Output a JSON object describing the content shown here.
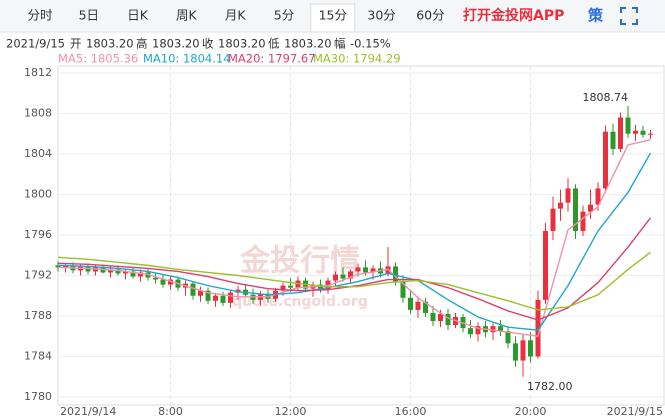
{
  "header": {
    "tabs": [
      {
        "label": "分时",
        "active": false
      },
      {
        "label": "5日",
        "active": false
      },
      {
        "label": "日K",
        "active": false
      },
      {
        "label": "周K",
        "active": false
      },
      {
        "label": "月K",
        "active": false
      },
      {
        "label": "5分",
        "active": false
      },
      {
        "label": "15分",
        "active": true
      },
      {
        "label": "30分",
        "active": false
      },
      {
        "label": "60分",
        "active": false
      }
    ],
    "app_link": "打开金投网APP",
    "strategy": "策"
  },
  "info": {
    "date": "2021/9/15",
    "items": [
      {
        "label": "开",
        "value": "1803.20"
      },
      {
        "label": "高",
        "value": "1803.20"
      },
      {
        "label": "收",
        "value": "1803.20"
      },
      {
        "label": "低",
        "value": "1803.20"
      },
      {
        "label": "幅",
        "value": "-0.15%"
      }
    ]
  },
  "chart_data": {
    "type": "candlestick",
    "up_color": "#e8313f",
    "down_color": "#2a9a2a",
    "ylim": [
      1780,
      1812
    ],
    "yticks": [
      1780,
      1784,
      1788,
      1792,
      1796,
      1800,
      1804,
      1808,
      1812
    ],
    "grid": true,
    "watermark": [
      "金投行情",
      "quote.cngold.org"
    ],
    "high_label": {
      "value": 1808.74,
      "label": "1808.74"
    },
    "low_label": {
      "value": 1782,
      "label": "1782.00"
    },
    "categories": [
      "2021/9/14",
      null,
      null,
      null,
      null,
      null,
      null,
      null,
      null,
      null,
      null,
      null,
      null,
      null,
      null,
      "8:00",
      null,
      null,
      null,
      null,
      null,
      null,
      null,
      null,
      null,
      null,
      null,
      null,
      null,
      null,
      null,
      "12:00",
      null,
      null,
      null,
      null,
      null,
      null,
      null,
      null,
      null,
      null,
      null,
      null,
      null,
      null,
      null,
      "16:00",
      null,
      null,
      null,
      null,
      null,
      null,
      null,
      null,
      null,
      null,
      null,
      null,
      null,
      null,
      null,
      "20:00",
      null,
      null,
      null,
      null,
      null,
      null,
      null,
      null,
      null,
      null,
      null,
      null,
      null,
      null,
      null,
      "2021/9/15"
    ],
    "candles": [
      [
        1793.0,
        1793.4,
        1792.4,
        1792.8
      ],
      [
        1792.8,
        1793.2,
        1792.3,
        1793.0
      ],
      [
        1793.0,
        1793.3,
        1792.2,
        1792.5
      ],
      [
        1792.5,
        1793.1,
        1792.0,
        1792.9
      ],
      [
        1792.9,
        1793.2,
        1792.1,
        1792.4
      ],
      [
        1792.4,
        1793.0,
        1792.0,
        1792.8
      ],
      [
        1792.8,
        1793.1,
        1792.2,
        1792.3
      ],
      [
        1792.3,
        1792.9,
        1791.8,
        1792.6
      ],
      [
        1792.6,
        1793.0,
        1792.0,
        1792.2
      ],
      [
        1792.2,
        1792.7,
        1791.6,
        1792.4
      ],
      [
        1792.4,
        1792.8,
        1791.7,
        1791.9
      ],
      [
        1791.9,
        1792.6,
        1791.4,
        1792.3
      ],
      [
        1792.3,
        1792.6,
        1791.5,
        1791.8
      ],
      [
        1791.8,
        1792.2,
        1791.2,
        1791.6
      ],
      [
        1791.6,
        1792.1,
        1790.8,
        1791.1
      ],
      [
        1791.1,
        1791.9,
        1790.6,
        1791.6
      ],
      [
        1791.6,
        1791.9,
        1790.5,
        1790.8
      ],
      [
        1790.8,
        1791.5,
        1790.0,
        1791.2
      ],
      [
        1791.2,
        1791.4,
        1789.6,
        1790.0
      ],
      [
        1790.0,
        1790.9,
        1789.4,
        1790.5
      ],
      [
        1790.5,
        1790.8,
        1789.2,
        1789.5
      ],
      [
        1789.5,
        1790.3,
        1788.9,
        1790.0
      ],
      [
        1790.0,
        1790.4,
        1789.0,
        1789.3
      ],
      [
        1789.3,
        1790.6,
        1788.8,
        1790.3
      ],
      [
        1790.3,
        1791.0,
        1789.6,
        1790.6
      ],
      [
        1790.6,
        1791.2,
        1789.8,
        1790.1
      ],
      [
        1790.1,
        1790.7,
        1789.2,
        1789.6
      ],
      [
        1789.6,
        1790.5,
        1789.0,
        1790.2
      ],
      [
        1790.2,
        1790.6,
        1789.3,
        1789.7
      ],
      [
        1789.7,
        1790.8,
        1789.4,
        1790.5
      ],
      [
        1790.5,
        1791.3,
        1790.0,
        1791.0
      ],
      [
        1791.0,
        1791.7,
        1790.4,
        1790.8
      ],
      [
        1790.8,
        1791.9,
        1790.5,
        1791.5
      ],
      [
        1791.5,
        1791.8,
        1790.4,
        1790.7
      ],
      [
        1790.7,
        1791.4,
        1789.9,
        1791.1
      ],
      [
        1791.1,
        1791.6,
        1790.3,
        1790.6
      ],
      [
        1790.6,
        1791.8,
        1790.2,
        1791.5
      ],
      [
        1791.5,
        1792.4,
        1791.0,
        1792.1
      ],
      [
        1792.1,
        1792.8,
        1791.4,
        1791.7
      ],
      [
        1791.7,
        1792.6,
        1791.2,
        1792.4
      ],
      [
        1792.4,
        1793.2,
        1791.9,
        1792.8
      ],
      [
        1792.8,
        1793.5,
        1792.0,
        1792.3
      ],
      [
        1792.3,
        1793.0,
        1791.6,
        1792.7
      ],
      [
        1792.7,
        1793.4,
        1791.8,
        1792.2
      ],
      [
        1792.2,
        1794.8,
        1791.9,
        1792.9
      ],
      [
        1792.9,
        1793.3,
        1791.0,
        1791.4
      ],
      [
        1791.4,
        1792.0,
        1789.3,
        1789.8
      ],
      [
        1789.8,
        1790.6,
        1788.2,
        1788.6
      ],
      [
        1788.6,
        1789.9,
        1787.8,
        1789.4
      ],
      [
        1789.4,
        1789.8,
        1787.9,
        1788.3
      ],
      [
        1788.3,
        1789.0,
        1787.0,
        1787.5
      ],
      [
        1787.5,
        1788.6,
        1786.9,
        1788.2
      ],
      [
        1788.2,
        1788.7,
        1786.6,
        1787.1
      ],
      [
        1787.1,
        1788.3,
        1786.8,
        1787.9
      ],
      [
        1787.9,
        1788.2,
        1786.4,
        1786.8
      ],
      [
        1786.8,
        1787.6,
        1785.8,
        1786.2
      ],
      [
        1786.2,
        1787.4,
        1785.5,
        1787.0
      ],
      [
        1787.0,
        1787.5,
        1785.9,
        1786.4
      ],
      [
        1786.4,
        1787.3,
        1785.6,
        1787.0
      ],
      [
        1787.0,
        1787.6,
        1786.0,
        1786.5
      ],
      [
        1786.5,
        1787.0,
        1784.8,
        1785.3
      ],
      [
        1785.3,
        1786.0,
        1783.0,
        1783.6
      ],
      [
        1783.6,
        1786.2,
        1782.0,
        1785.6
      ],
      [
        1785.6,
        1786.4,
        1783.4,
        1784.0
      ],
      [
        1784.0,
        1790.5,
        1783.8,
        1789.6
      ],
      [
        1789.6,
        1797.2,
        1789.2,
        1796.4
      ],
      [
        1796.4,
        1799.8,
        1795.5,
        1798.6
      ],
      [
        1798.6,
        1800.5,
        1797.4,
        1799.2
      ],
      [
        1799.2,
        1801.6,
        1798.3,
        1800.6
      ],
      [
        1800.6,
        1801.0,
        1795.6,
        1796.4
      ],
      [
        1796.4,
        1798.9,
        1795.9,
        1798.3
      ],
      [
        1798.3,
        1800.5,
        1797.6,
        1799.0
      ],
      [
        1799.0,
        1801.2,
        1798.4,
        1800.6
      ],
      [
        1800.6,
        1806.8,
        1800.2,
        1806.2
      ],
      [
        1806.2,
        1807.0,
        1803.9,
        1804.5
      ],
      [
        1804.5,
        1808.1,
        1804.2,
        1807.6
      ],
      [
        1807.6,
        1808.74,
        1805.6,
        1806.0
      ],
      [
        1806.0,
        1806.9,
        1805.3,
        1806.3
      ],
      [
        1806.3,
        1806.8,
        1805.6,
        1805.9
      ],
      [
        1805.9,
        1806.4,
        1805.5,
        1806.0
      ]
    ],
    "x": [
      0,
      4,
      8,
      12,
      16,
      20,
      24,
      28,
      32,
      36,
      40,
      44,
      48,
      52,
      56,
      60,
      64,
      68,
      72,
      76,
      79
    ],
    "series": [
      {
        "name": "MA5",
        "legend": "MA5: 1805.36",
        "color": "#f291a8",
        "values": [
          1792.8,
          1792.7,
          1792.5,
          1792.1,
          1791.2,
          1790.3,
          1789.9,
          1789.9,
          1790.8,
          1791.0,
          1792.1,
          1792.6,
          1789.8,
          1787.8,
          1786.8,
          1786.4,
          1786.0,
          1796.5,
          1798.8,
          1804.9,
          1805.4
        ]
      },
      {
        "name": "MA10",
        "legend": "MA10: 1804.14",
        "color": "#1fa7c9",
        "values": [
          1793.0,
          1792.9,
          1792.7,
          1792.4,
          1791.8,
          1791.0,
          1790.4,
          1790.1,
          1790.3,
          1790.8,
          1791.4,
          1792.2,
          1791.5,
          1789.6,
          1787.9,
          1786.9,
          1786.6,
          1791.0,
          1796.4,
          1800.2,
          1804.1
        ]
      },
      {
        "name": "MA20",
        "legend": "MA20: 1797.67",
        "color": "#d9416c",
        "values": [
          1793.2,
          1793.1,
          1792.9,
          1792.7,
          1792.4,
          1791.9,
          1791.2,
          1790.7,
          1790.5,
          1790.6,
          1791.0,
          1791.6,
          1791.6,
          1790.8,
          1789.7,
          1788.5,
          1787.6,
          1788.8,
          1791.3,
          1794.8,
          1797.7
        ]
      },
      {
        "name": "MA30",
        "legend": "MA30: 1794.29",
        "color": "#9cbf2b",
        "values": [
          1793.8,
          1793.6,
          1793.3,
          1793.0,
          1792.6,
          1792.3,
          1792.0,
          1791.6,
          1791.2,
          1790.9,
          1790.9,
          1791.3,
          1791.5,
          1791.1,
          1790.3,
          1789.5,
          1788.6,
          1788.9,
          1790.1,
          1792.6,
          1794.3
        ]
      }
    ]
  }
}
